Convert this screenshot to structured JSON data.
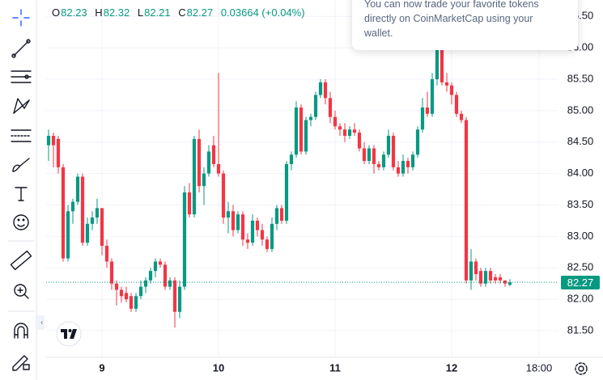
{
  "chart_data": {
    "type": "candlestick",
    "header": {
      "labels": [
        "O",
        "H",
        "L",
        "C"
      ],
      "change": "0.03664 (+0.04%)"
    },
    "popup_lines": [
      "You can now trade your favorite tokens",
      "directly on CoinMarketCap using your",
      "wallet."
    ],
    "up_color": "#089981",
    "down_color": "#f23645",
    "x": [
      -11,
      -10,
      -9,
      -8,
      -7,
      -6,
      -5,
      -4,
      -3,
      -2,
      -1,
      0,
      1,
      2,
      3,
      4,
      5,
      6,
      7,
      8,
      9,
      10,
      11,
      12,
      13,
      14,
      15,
      16,
      17,
      18,
      19,
      20,
      21,
      22,
      23,
      24,
      25,
      26,
      27,
      28,
      29,
      30,
      31,
      32,
      33,
      34,
      35,
      36,
      37,
      38,
      39,
      40,
      41,
      42,
      43,
      44,
      45,
      46,
      47,
      48,
      49,
      50,
      51,
      52,
      53,
      54,
      55,
      56,
      57,
      58,
      59,
      60,
      61,
      62,
      63,
      64,
      65,
      66,
      67,
      68,
      69,
      70,
      71,
      72,
      73,
      74,
      75,
      76,
      77,
      78,
      79,
      80,
      81,
      82,
      83,
      84
    ],
    "open": [
      84.45,
      84.6,
      84.55,
      84.1,
      82.65,
      83.4,
      83.55,
      83.95,
      82.9,
      83.2,
      83.3,
      83.45,
      82.85,
      82.6,
      82.25,
      82.15,
      82.1,
      82.05,
      81.85,
      82.05,
      82.2,
      82.3,
      82.45,
      82.6,
      82.55,
      82.2,
      82.3,
      81.8,
      82.2,
      83.7,
      83.35,
      84.55,
      83.8,
      84.0,
      84.45,
      84.15,
      84.0,
      83.3,
      83.4,
      83.1,
      83.35,
      82.95,
      82.9,
      83.25,
      83.1,
      82.95,
      82.8,
      83.2,
      83.45,
      83.25,
      84.15,
      84.3,
      85.05,
      84.35,
      84.85,
      84.9,
      85.25,
      85.45,
      85.2,
      84.9,
      84.75,
      84.7,
      84.6,
      84.7,
      84.65,
      84.4,
      84.2,
      84.4,
      84.15,
      84.1,
      84.3,
      84.6,
      84.1,
      84.0,
      84.2,
      84.1,
      84.3,
      84.7,
      85.05,
      84.95,
      85.5,
      86.0,
      85.45,
      85.4,
      85.25,
      84.95,
      84.85,
      82.3,
      82.6,
      82.45,
      82.25,
      82.45,
      82.35,
      82.35,
      82.3,
      82.23
    ],
    "high": [
      84.7,
      84.65,
      84.6,
      84.15,
      83.5,
      83.6,
      84.0,
      84.0,
      83.3,
      83.4,
      83.6,
      83.45,
      82.95,
      82.65,
      82.3,
      82.2,
      82.2,
      82.1,
      82.1,
      82.3,
      82.35,
      82.5,
      82.65,
      82.65,
      82.6,
      82.35,
      82.35,
      82.3,
      83.8,
      83.85,
      84.6,
      84.7,
      84.1,
      84.45,
      84.6,
      85.6,
      84.05,
      83.55,
      83.5,
      83.4,
      83.4,
      83.05,
      83.35,
      83.3,
      83.2,
      83.0,
      83.3,
      83.5,
      83.5,
      84.2,
      84.35,
      85.15,
      85.1,
      84.9,
      84.95,
      85.3,
      85.5,
      85.5,
      85.3,
      85.0,
      84.8,
      84.8,
      84.75,
      84.8,
      84.7,
      84.5,
      84.45,
      84.45,
      84.2,
      84.35,
      84.7,
      84.65,
      84.2,
      84.3,
      84.25,
      84.35,
      84.75,
      85.2,
      85.3,
      85.6,
      86.1,
      86.05,
      85.6,
      85.45,
      85.3,
      85.0,
      84.9,
      82.8,
      82.65,
      82.5,
      82.5,
      82.5,
      82.4,
      82.4,
      82.3,
      82.32
    ],
    "low": [
      84.2,
      84.1,
      84.0,
      82.6,
      82.6,
      83.2,
      83.5,
      82.85,
      82.85,
      83.1,
      83.2,
      82.7,
      82.5,
      82.15,
      81.9,
      81.95,
      81.95,
      81.8,
      81.8,
      82.0,
      82.1,
      82.25,
      82.35,
      82.5,
      82.15,
      82.15,
      81.55,
      81.7,
      82.15,
      83.3,
      83.3,
      83.7,
      83.5,
      83.95,
      84.1,
      83.95,
      83.2,
      83.05,
      83.0,
      83.05,
      82.85,
      82.8,
      82.85,
      83.0,
      82.85,
      82.75,
      82.75,
      83.1,
      83.2,
      83.2,
      84.05,
      84.25,
      84.3,
      84.3,
      84.75,
      84.85,
      85.2,
      85.1,
      84.8,
      84.7,
      84.6,
      84.5,
      84.55,
      84.6,
      84.35,
      84.15,
      84.15,
      84.0,
      84.05,
      84.05,
      84.25,
      84.05,
      83.95,
      83.95,
      84.0,
      84.05,
      84.25,
      84.65,
      84.9,
      84.9,
      85.4,
      85.4,
      85.3,
      85.1,
      84.9,
      84.8,
      82.25,
      82.15,
      82.3,
      82.2,
      82.2,
      82.25,
      82.25,
      82.25,
      82.2,
      82.21
    ],
    "close": [
      84.6,
      84.45,
      84.1,
      82.65,
      83.4,
      83.55,
      83.95,
      82.9,
      83.2,
      83.3,
      83.45,
      82.85,
      82.6,
      82.25,
      82.15,
      82.05,
      82.0,
      81.85,
      82.05,
      82.2,
      82.3,
      82.45,
      82.6,
      82.55,
      82.2,
      82.3,
      81.8,
      82.2,
      83.7,
      83.35,
      84.55,
      83.8,
      84.0,
      84.35,
      84.15,
      84.0,
      83.3,
      83.4,
      83.1,
      83.35,
      82.95,
      82.9,
      83.25,
      83.1,
      82.95,
      82.8,
      83.2,
      83.45,
      83.25,
      84.15,
      84.3,
      85.05,
      84.35,
      84.85,
      84.9,
      85.25,
      85.45,
      85.2,
      84.9,
      84.75,
      84.7,
      84.6,
      84.7,
      84.65,
      84.4,
      84.2,
      84.4,
      84.15,
      84.1,
      84.3,
      84.6,
      84.1,
      84.0,
      84.2,
      84.1,
      84.3,
      84.7,
      85.05,
      84.95,
      85.5,
      86.0,
      85.45,
      85.4,
      85.25,
      84.95,
      84.85,
      82.3,
      82.6,
      82.4,
      82.25,
      82.45,
      82.3,
      82.3,
      82.3,
      82.25,
      82.27
    ],
    "xlim": [
      -11.5,
      94
    ],
    "xticks": [
      {
        "value": 0,
        "label": "9"
      },
      {
        "value": 24,
        "label": "10"
      },
      {
        "value": 48,
        "label": "11"
      },
      {
        "value": 72,
        "label": "12"
      },
      {
        "value": 90,
        "label": "18:00"
      }
    ],
    "ylim": [
      81.076,
      86.76
    ],
    "yticks": [
      {
        "value": 81.5,
        "label": "81.50"
      },
      {
        "value": 82,
        "label": "82.00"
      },
      {
        "value": 82.5,
        "label": "82.50"
      },
      {
        "value": 83,
        "label": "83.00"
      },
      {
        "value": 83.5,
        "label": "83.50"
      },
      {
        "value": 84,
        "label": "84.00"
      },
      {
        "value": 84.5,
        "label": "84.50"
      },
      {
        "value": 85,
        "label": "85.00"
      },
      {
        "value": 85.5,
        "label": "85.50"
      },
      {
        "value": 86,
        "label": "86.00"
      },
      {
        "value": 86.5,
        "label": "86.50"
      }
    ],
    "grid": true
  }
}
